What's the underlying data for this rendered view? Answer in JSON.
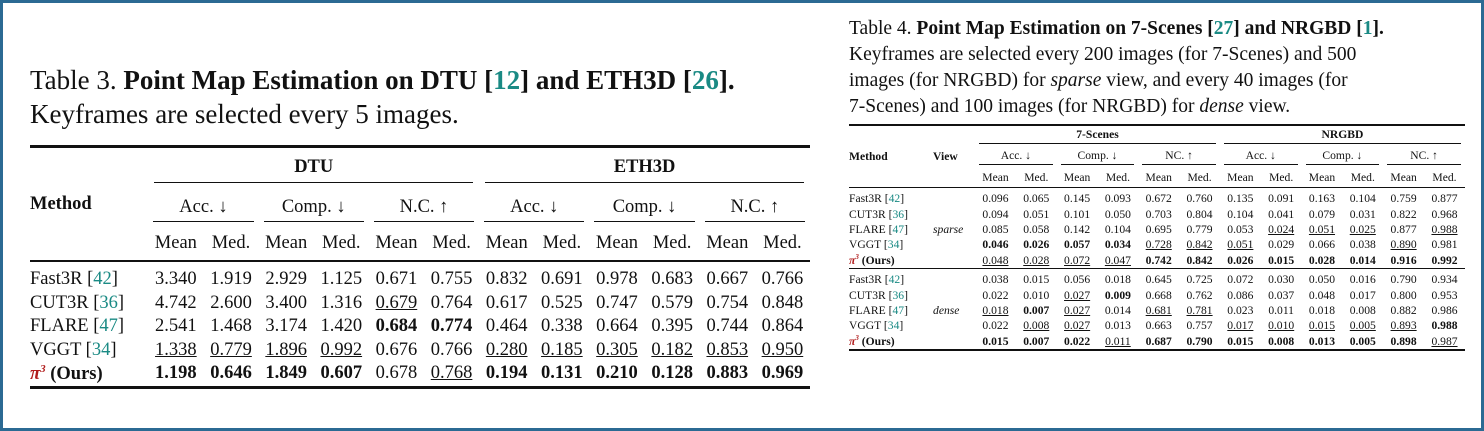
{
  "table3": {
    "label": "Table 3.",
    "title": "Point Map Estimation on DTU [12] and ETH3D [26].",
    "title_parts": {
      "pre": "Point Map Estimation on DTU [",
      "ref1": "12",
      "mid": "] and ETH3D [",
      "ref2": "26",
      "post": "]."
    },
    "subtitle": "Keyframes are selected every 5 images.",
    "method_header": "Method",
    "groups": [
      "DTU",
      "ETH3D"
    ],
    "metrics": [
      "Acc. ↓",
      "Comp. ↓",
      "N.C. ↑",
      "Acc. ↓",
      "Comp. ↓",
      "N.C. ↑"
    ],
    "sub": [
      "Mean",
      "Med."
    ],
    "rows": [
      {
        "name": "Fast3R",
        "ref": "42",
        "vals": [
          "3.340",
          "1.919",
          "2.929",
          "1.125",
          "0.671",
          "0.755",
          "0.832",
          "0.691",
          "0.978",
          "0.683",
          "0.667",
          "0.766"
        ],
        "bold": [],
        "ul": []
      },
      {
        "name": "CUT3R",
        "ref": "36",
        "vals": [
          "4.742",
          "2.600",
          "3.400",
          "1.316",
          "0.679",
          "0.764",
          "0.617",
          "0.525",
          "0.747",
          "0.579",
          "0.754",
          "0.848"
        ],
        "bold": [],
        "ul": [
          4
        ]
      },
      {
        "name": "FLARE",
        "ref": "47",
        "vals": [
          "2.541",
          "1.468",
          "3.174",
          "1.420",
          "0.684",
          "0.774",
          "0.464",
          "0.338",
          "0.664",
          "0.395",
          "0.744",
          "0.864"
        ],
        "bold": [
          4,
          5
        ],
        "ul": []
      },
      {
        "name": "VGGT",
        "ref": "34",
        "vals": [
          "1.338",
          "0.779",
          "1.896",
          "0.992",
          "0.676",
          "0.766",
          "0.280",
          "0.185",
          "0.305",
          "0.182",
          "0.853",
          "0.950"
        ],
        "bold": [],
        "ul": [
          0,
          1,
          2,
          3,
          6,
          7,
          8,
          9,
          10,
          11
        ]
      },
      {
        "name": "(Ours)",
        "pi": true,
        "vals": [
          "1.198",
          "0.646",
          "1.849",
          "0.607",
          "0.678",
          "0.768",
          "0.194",
          "0.131",
          "0.210",
          "0.128",
          "0.883",
          "0.969"
        ],
        "bold": [
          0,
          1,
          2,
          3,
          6,
          7,
          8,
          9,
          10,
          11
        ],
        "ul": [
          5
        ]
      }
    ]
  },
  "table4": {
    "label": "Table 4.",
    "title_parts": {
      "pre": "Point Map Estimation on 7-Scenes [",
      "ref1": "27",
      "mid": "] and NRGBD [",
      "ref2": "1",
      "post": "]."
    },
    "caption_lines": [
      "Keyframes are selected every 200 images (for 7-Scenes) and 500",
      "images (for NRGBD) for",
      "sparse",
      "view, and every 40 images (for",
      "7-Scenes) and 100 images (for NRGBD) for",
      "dense",
      "view."
    ],
    "method_header": "Method",
    "view_header": "View",
    "groups": [
      "7-Scenes",
      "NRGBD"
    ],
    "metrics": [
      "Acc. ↓",
      "Comp. ↓",
      "NC. ↑",
      "Acc. ↓",
      "Comp. ↓",
      "NC. ↑"
    ],
    "sub": [
      "Mean",
      "Med."
    ],
    "blocks": [
      {
        "view": "sparse",
        "rows": [
          {
            "name": "Fast3R",
            "ref": "42",
            "vals": [
              "0.096",
              "0.065",
              "0.145",
              "0.093",
              "0.672",
              "0.760",
              "0.135",
              "0.091",
              "0.163",
              "0.104",
              "0.759",
              "0.877"
            ],
            "bold": [],
            "ul": []
          },
          {
            "name": "CUT3R",
            "ref": "36",
            "vals": [
              "0.094",
              "0.051",
              "0.101",
              "0.050",
              "0.703",
              "0.804",
              "0.104",
              "0.041",
              "0.079",
              "0.031",
              "0.822",
              "0.968"
            ],
            "bold": [],
            "ul": []
          },
          {
            "name": "FLARE",
            "ref": "47",
            "vals": [
              "0.085",
              "0.058",
              "0.142",
              "0.104",
              "0.695",
              "0.779",
              "0.053",
              "0.024",
              "0.051",
              "0.025",
              "0.877",
              "0.988"
            ],
            "bold": [],
            "ul": [
              7,
              8,
              9,
              11
            ]
          },
          {
            "name": "VGGT",
            "ref": "34",
            "vals": [
              "0.046",
              "0.026",
              "0.057",
              "0.034",
              "0.728",
              "0.842",
              "0.051",
              "0.029",
              "0.066",
              "0.038",
              "0.890",
              "0.981"
            ],
            "bold": [
              0,
              1,
              2,
              3
            ],
            "ul": [
              4,
              5,
              6,
              10
            ]
          },
          {
            "name": "(Ours)",
            "pi": true,
            "vals": [
              "0.048",
              "0.028",
              "0.072",
              "0.047",
              "0.742",
              "0.842",
              "0.026",
              "0.015",
              "0.028",
              "0.014",
              "0.916",
              "0.992"
            ],
            "bold": [
              4,
              5,
              6,
              7,
              8,
              9,
              10,
              11
            ],
            "ul": [
              0,
              1,
              2,
              3
            ]
          }
        ]
      },
      {
        "view": "dense",
        "rows": [
          {
            "name": "Fast3R",
            "ref": "42",
            "vals": [
              "0.038",
              "0.015",
              "0.056",
              "0.018",
              "0.645",
              "0.725",
              "0.072",
              "0.030",
              "0.050",
              "0.016",
              "0.790",
              "0.934"
            ],
            "bold": [],
            "ul": []
          },
          {
            "name": "CUT3R",
            "ref": "36",
            "vals": [
              "0.022",
              "0.010",
              "0.027",
              "0.009",
              "0.668",
              "0.762",
              "0.086",
              "0.037",
              "0.048",
              "0.017",
              "0.800",
              "0.953"
            ],
            "bold": [
              3
            ],
            "ul": [
              2
            ]
          },
          {
            "name": "FLARE",
            "ref": "47",
            "vals": [
              "0.018",
              "0.007",
              "0.027",
              "0.014",
              "0.681",
              "0.781",
              "0.023",
              "0.011",
              "0.018",
              "0.008",
              "0.882",
              "0.986"
            ],
            "bold": [
              1
            ],
            "ul": [
              0,
              2,
              4,
              5
            ]
          },
          {
            "name": "VGGT",
            "ref": "34",
            "vals": [
              "0.022",
              "0.008",
              "0.027",
              "0.013",
              "0.663",
              "0.757",
              "0.017",
              "0.010",
              "0.015",
              "0.005",
              "0.893",
              "0.988"
            ],
            "bold": [
              11
            ],
            "ul": [
              1,
              2,
              6,
              7,
              8,
              9,
              10
            ]
          },
          {
            "name": "(Ours)",
            "pi": true,
            "vals": [
              "0.015",
              "0.007",
              "0.022",
              "0.011",
              "0.687",
              "0.790",
              "0.015",
              "0.008",
              "0.013",
              "0.005",
              "0.898",
              "0.987"
            ],
            "bold": [
              0,
              1,
              2,
              4,
              5,
              6,
              7,
              8,
              9,
              10
            ],
            "ul": [
              3,
              11
            ]
          }
        ]
      }
    ]
  }
}
